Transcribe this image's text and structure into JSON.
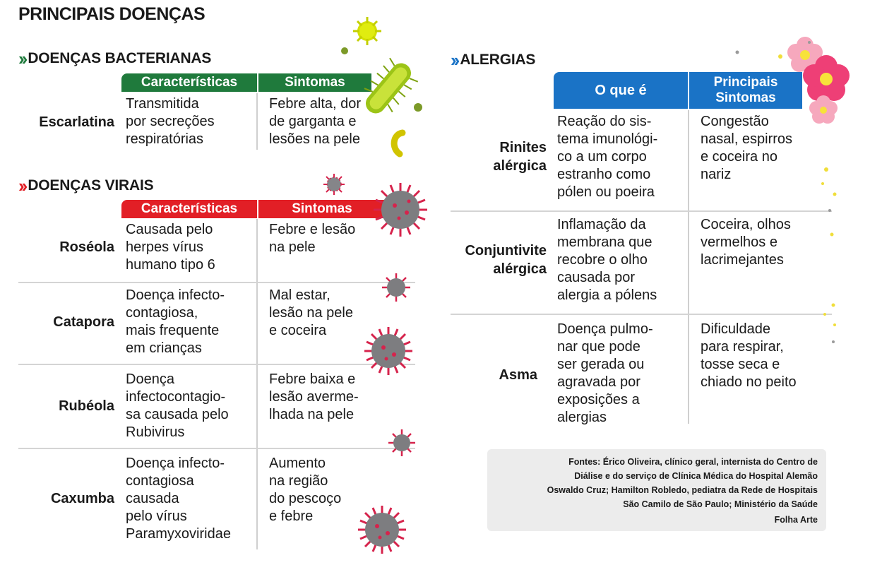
{
  "title": "PRINCIPAIS DOENÇAS",
  "colors": {
    "bacterial": "#1f7a3c",
    "viral": "#e21f26",
    "allergy": "#1a73c6",
    "virus_spike": "#d6234c",
    "virus_body": "#7d7d80"
  },
  "bacterial": {
    "title": "DOENÇAS BACTERIANAS",
    "headers": [
      "Características",
      "Sintomas"
    ],
    "rows": [
      {
        "name": "Escarlatina",
        "characteristics": [
          "Transmitida",
          "por secreções",
          "respiratórias"
        ],
        "symptoms": [
          "Febre alta, dor",
          "de garganta e",
          "lesões na pele"
        ]
      }
    ]
  },
  "viral": {
    "title": "DOENÇAS VIRAIS",
    "headers": [
      "Características",
      "Sintomas"
    ],
    "rows": [
      {
        "name": "Roséola",
        "characteristics": [
          "Causada pelo",
          "herpes vírus",
          "humano tipo 6"
        ],
        "symptoms": [
          "Febre e lesão",
          "na pele"
        ]
      },
      {
        "name": "Catapora",
        "characteristics": [
          "Doença infecto-",
          "contagiosa,",
          "mais frequente",
          "em crianças"
        ],
        "symptoms": [
          "Mal estar,",
          "lesão na pele",
          "e coceira"
        ]
      },
      {
        "name": "Rubéola",
        "characteristics": [
          "Doença",
          "infectocontagio-",
          "sa causada pelo",
          "Rubivirus"
        ],
        "symptoms": [
          "Febre baixa e",
          "lesão averme-",
          "lhada na pele"
        ]
      },
      {
        "name": "Caxumba",
        "characteristics": [
          "Doença infecto-",
          "contagiosa",
          "causada",
          "pelo vírus",
          "Paramyxoviridae"
        ],
        "symptoms": [
          "Aumento",
          "na região",
          "do pescoço",
          "e febre"
        ]
      }
    ]
  },
  "allergies": {
    "title": "ALERGIAS",
    "headers": [
      "O que é",
      "Principais\nSintomas"
    ],
    "rows": [
      {
        "name": [
          "Rinites",
          "alérgica"
        ],
        "what": [
          "Reação do sis-",
          "tema imunológi-",
          "co a um corpo",
          "estranho como",
          "pólen ou poeira"
        ],
        "symptoms": [
          "Congestão",
          "nasal, espirros",
          "e coceira no",
          "nariz"
        ]
      },
      {
        "name": [
          "Conjuntivite",
          "alérgica"
        ],
        "what": [
          "Inflamação da",
          "membrana que",
          "recobre o olho",
          "causada por",
          "alergia a pólens"
        ],
        "symptoms": [
          "Coceira, olhos",
          "vermelhos e",
          "lacrimejantes"
        ]
      },
      {
        "name": [
          "Asma"
        ],
        "what": [
          "Doença pulmo-",
          "nar que pode",
          "ser gerada ou",
          "agravada por",
          "exposições a",
          "alergias"
        ],
        "symptoms": [
          "Dificuldade",
          "para respirar,",
          "tosse seca e",
          "chiado no peito"
        ]
      }
    ]
  },
  "sources": {
    "lines": [
      "Fontes: Érico Oliveira, clínico geral, internista do Centro de",
      "Diálise e do serviço de Clínica Médica do Hospital Alemão",
      "Oswaldo Cruz; Hamilton Robledo, pediatra da Rede de Hospitais",
      "São Camilo de São Paulo; Ministério da Saúde"
    ],
    "credit": "Folha Arte"
  },
  "icons": [
    "chevron-double-right-icon",
    "bacteria-icon",
    "virus-icon",
    "flower-icon",
    "pollen-icon"
  ]
}
